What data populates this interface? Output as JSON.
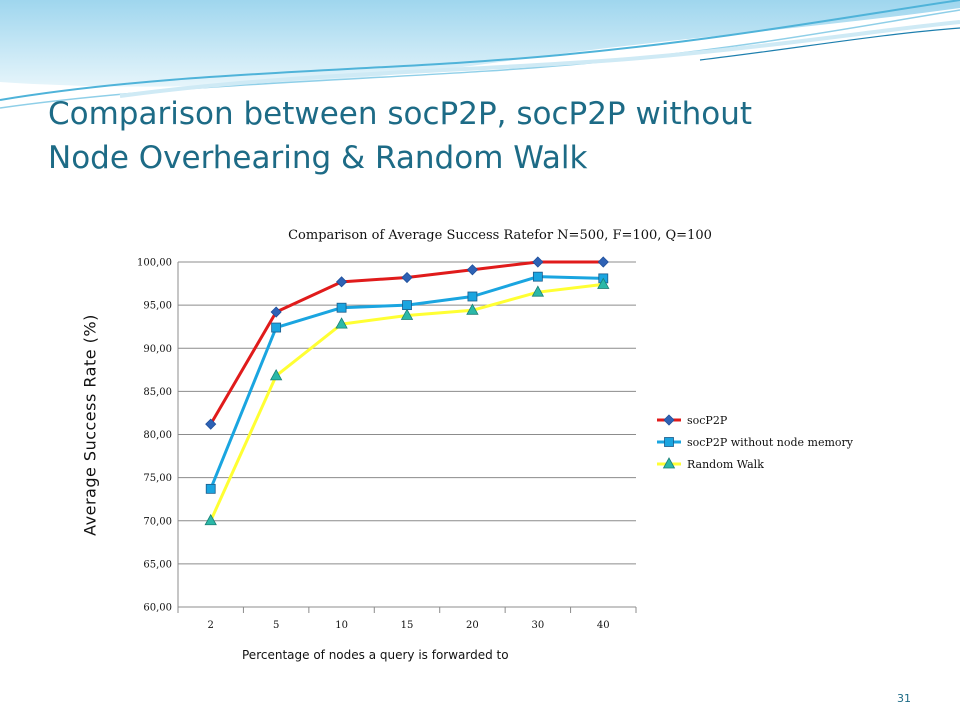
{
  "slide": {
    "title": "Comparison between socP2P, socP2P without\nNode Overhearing & Random Walk",
    "page_number": "31"
  },
  "chart_data": {
    "type": "line",
    "title": "Comparison of Average Success Ratefor N=500, F=100, Q=100",
    "xlabel": "Percentage of nodes a query is forwarded to",
    "ylabel": "Average  Success  Rate  (%)",
    "categories": [
      "2",
      "5",
      "10",
      "15",
      "20",
      "30",
      "40"
    ],
    "y_ticks": [
      "60,00",
      "65,00",
      "70,00",
      "75,00",
      "80,00",
      "85,00",
      "90,00",
      "95,00",
      "100,00"
    ],
    "ylim": [
      60,
      100
    ],
    "grid": true,
    "legend_position": "right",
    "series": [
      {
        "name": "socP2P",
        "color": "#e01b1b",
        "marker": "diamond",
        "marker_color": "#2e62b5",
        "values": [
          81.2,
          94.2,
          97.7,
          98.2,
          99.1,
          100.0,
          100.0
        ]
      },
      {
        "name": "socP2P without node memory",
        "color": "#1aa5e0",
        "marker": "square",
        "marker_color": "#1aa5e0",
        "values": [
          73.7,
          92.4,
          94.7,
          95.0,
          96.0,
          98.3,
          98.1
        ]
      },
      {
        "name": "Random Walk",
        "color": "#ffff33",
        "marker": "triangle",
        "marker_color": "#2bb8a8",
        "values": [
          70.0,
          86.8,
          92.8,
          93.8,
          94.4,
          96.5,
          97.4
        ]
      }
    ]
  }
}
